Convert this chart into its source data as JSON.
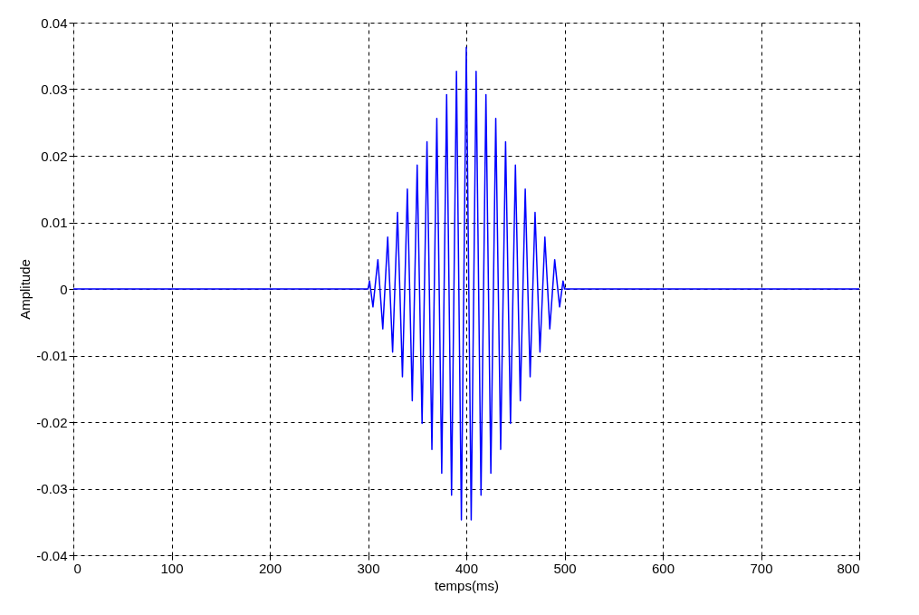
{
  "chart_data": {
    "type": "line",
    "xlabel": "temps(ms)",
    "ylabel": "Amplitude",
    "xlim": [
      0,
      800
    ],
    "xticks": [
      0,
      100,
      200,
      300,
      400,
      500,
      600,
      700,
      800
    ],
    "ylim": [
      -0.04,
      0.04
    ],
    "yticks": [
      -0.04,
      -0.03,
      -0.02,
      -0.01,
      0,
      0.01,
      0.02,
      0.03,
      0.04
    ],
    "grid": true,
    "line_style": "solid",
    "marker": "none",
    "series": [
      {
        "color": "#0000ff",
        "x": [
          0,
          300,
          301.5,
          305,
          310,
          315,
          320,
          325,
          330,
          335,
          340,
          345,
          350,
          355,
          360,
          365,
          370,
          375,
          380,
          385,
          390,
          395,
          400,
          405,
          410,
          415,
          420,
          425,
          430,
          435,
          440,
          445,
          450,
          455,
          460,
          465,
          470,
          475,
          480,
          485,
          490,
          495,
          498.5,
          500,
          800
        ],
        "values": [
          0,
          0,
          0.0012,
          -0.0027,
          0.0044,
          -0.006,
          0.0078,
          -0.0095,
          0.0115,
          -0.0132,
          0.015,
          -0.0168,
          0.0186,
          -0.0202,
          0.0221,
          -0.0241,
          0.0256,
          -0.0277,
          0.0292,
          -0.031,
          0.0327,
          -0.0347,
          0.0363,
          -0.0347,
          0.0327,
          -0.031,
          0.0292,
          -0.0277,
          0.0256,
          -0.0241,
          0.0221,
          -0.0202,
          0.0186,
          -0.0168,
          0.015,
          -0.0132,
          0.0115,
          -0.0095,
          0.0078,
          -0.006,
          0.0044,
          -0.0027,
          0.0012,
          0,
          0
        ]
      }
    ]
  }
}
